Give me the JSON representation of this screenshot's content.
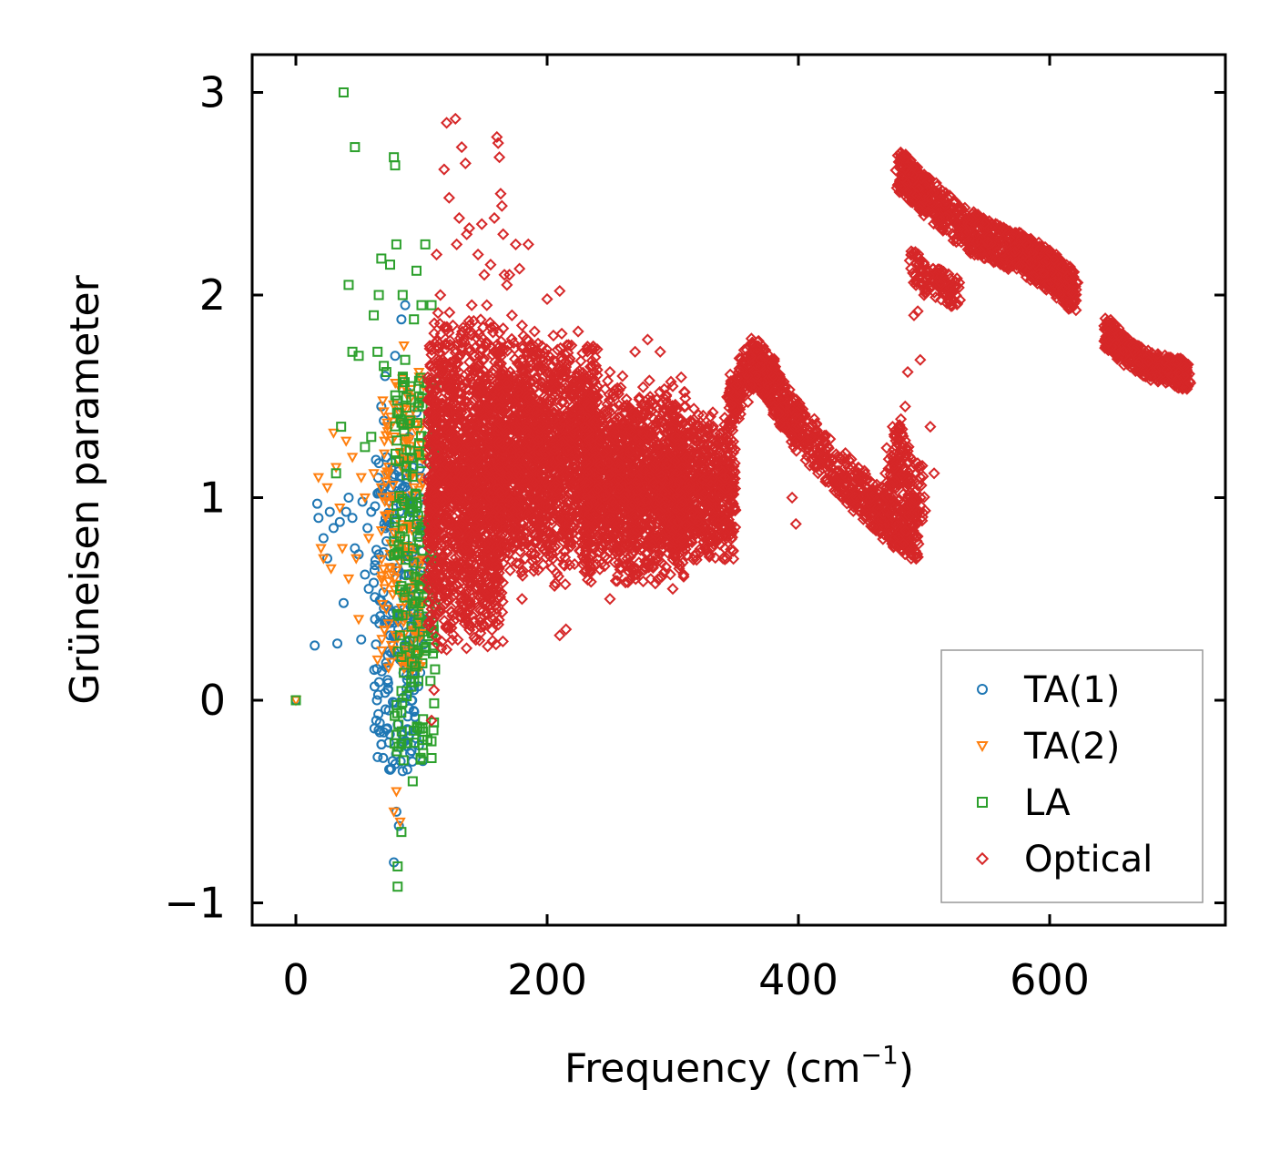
{
  "chart_data": {
    "type": "scatter",
    "title": "",
    "xlabel": "Frequency (cm",
    "xlabel_sup": "−1",
    "xlabel_suffix": ")",
    "ylabel": "Grüneisen parameter",
    "xlim": [
      -35,
      740
    ],
    "ylim": [
      -1.2,
      3.2
    ],
    "xticks": [
      0,
      200,
      400,
      600
    ],
    "xtick_labels": [
      "0",
      "200",
      "400",
      "600"
    ],
    "yticks": [
      -1,
      0,
      1,
      2,
      3
    ],
    "ytick_labels": [
      "−1",
      "0",
      "1",
      "2",
      "3"
    ],
    "grid": false,
    "legend_position": "lower-right",
    "series": [
      {
        "name": "TA(1)",
        "marker": "circle",
        "color": "#1f77b4",
        "points": [
          [
            0,
            0
          ],
          [
            15,
            0.27
          ],
          [
            17,
            0.97
          ],
          [
            18,
            0.9
          ],
          [
            22,
            0.8
          ],
          [
            25,
            0.7
          ],
          [
            27,
            0.93
          ],
          [
            30,
            0.85
          ],
          [
            33,
            0.28
          ],
          [
            35,
            0.88
          ],
          [
            38,
            0.48
          ],
          [
            40,
            0.93
          ],
          [
            42,
            1.0
          ],
          [
            45,
            0.9
          ],
          [
            47,
            0.75
          ],
          [
            50,
            0.72
          ],
          [
            52,
            0.3
          ],
          [
            53,
            0.98
          ],
          [
            55,
            0.62
          ],
          [
            57,
            0.85
          ],
          [
            58,
            0.55
          ],
          [
            60,
            0.93
          ],
          [
            62,
            0.58
          ],
          [
            63,
            0.4
          ],
          [
            65,
            1.02
          ],
          [
            66,
            0.72
          ],
          [
            68,
            1.45
          ],
          [
            70,
            1.38
          ],
          [
            71,
            1.6
          ],
          [
            72,
            1.2
          ],
          [
            73,
            0.1
          ],
          [
            74,
            -0.05
          ],
          [
            75,
            0.32
          ],
          [
            76,
            1.05
          ],
          [
            77,
            -0.3
          ],
          [
            78,
            0.82
          ],
          [
            78,
            -0.8
          ],
          [
            79,
            1.7
          ],
          [
            80,
            -0.55
          ],
          [
            80,
            0.6
          ],
          [
            81,
            -0.12
          ],
          [
            82,
            1.45
          ],
          [
            82,
            -0.62
          ],
          [
            83,
            0.2
          ],
          [
            84,
            1.88
          ],
          [
            85,
            -0.35
          ],
          [
            85,
            1.05
          ],
          [
            86,
            0.45
          ],
          [
            87,
            1.95
          ],
          [
            87,
            -0.2
          ],
          [
            88,
            0.72
          ],
          [
            89,
            1.52
          ],
          [
            89,
            -0.08
          ],
          [
            90,
            1.3
          ],
          [
            91,
            0.95
          ],
          [
            92,
            0.5
          ],
          [
            92,
            -0.25
          ],
          [
            93,
            1.15
          ],
          [
            94,
            0.05
          ],
          [
            95,
            0.65
          ],
          [
            96,
            1.42
          ],
          [
            97,
            -0.15
          ],
          [
            98,
            0.85
          ],
          [
            99,
            0.32
          ],
          [
            100,
            1.1
          ]
        ],
        "cloud": {
          "x": [
            62,
            102
          ],
          "y": [
            -0.35,
            1.2
          ],
          "n": 220
        }
      },
      {
        "name": "TA(2)",
        "marker": "triangle-down",
        "color": "#ff7f0e",
        "points": [
          [
            0,
            0
          ],
          [
            18,
            1.1
          ],
          [
            20,
            0.75
          ],
          [
            22,
            0.7
          ],
          [
            25,
            1.05
          ],
          [
            28,
            0.65
          ],
          [
            30,
            1.32
          ],
          [
            32,
            1.15
          ],
          [
            35,
            0.95
          ],
          [
            37,
            0.75
          ],
          [
            40,
            1.28
          ],
          [
            42,
            0.6
          ],
          [
            45,
            1.2
          ],
          [
            48,
            0.7
          ],
          [
            50,
            0.4
          ],
          [
            52,
            1.1
          ],
          [
            55,
            1.0
          ],
          [
            58,
            0.8
          ],
          [
            62,
            1.12
          ],
          [
            65,
            0.2
          ],
          [
            68,
            1.05
          ],
          [
            72,
            0.45
          ],
          [
            75,
            0.62
          ],
          [
            78,
            -0.55
          ],
          [
            80,
            -0.45
          ],
          [
            82,
            1.55
          ],
          [
            83,
            -0.6
          ],
          [
            85,
            0.5
          ],
          [
            86,
            1.75
          ],
          [
            88,
            0.25
          ],
          [
            90,
            1.35
          ],
          [
            92,
            0.75
          ],
          [
            94,
            1.05
          ],
          [
            96,
            0.35
          ],
          [
            98,
            1.62
          ],
          [
            100,
            0.55
          ]
        ],
        "cloud": {
          "x": [
            68,
            102
          ],
          "y": [
            0.15,
            1.6
          ],
          "n": 180
        }
      },
      {
        "name": "LA",
        "marker": "square",
        "color": "#2ca02c",
        "points": [
          [
            0,
            0
          ],
          [
            32,
            1.12
          ],
          [
            36,
            1.35
          ],
          [
            38,
            3.0
          ],
          [
            42,
            2.05
          ],
          [
            45,
            1.72
          ],
          [
            47,
            2.73
          ],
          [
            50,
            1.7
          ],
          [
            55,
            1.25
          ],
          [
            60,
            1.3
          ],
          [
            62,
            1.9
          ],
          [
            65,
            1.72
          ],
          [
            66,
            2.0
          ],
          [
            68,
            2.18
          ],
          [
            70,
            1.65
          ],
          [
            72,
            1.62
          ],
          [
            75,
            2.15
          ],
          [
            78,
            2.68
          ],
          [
            79,
            2.64
          ],
          [
            80,
            2.25
          ],
          [
            81,
            -0.82
          ],
          [
            82,
            1.42
          ],
          [
            84,
            -0.65
          ],
          [
            85,
            2.0
          ],
          [
            87,
            1.68
          ],
          [
            88,
            1.15
          ],
          [
            90,
            0.62
          ],
          [
            91,
            1.55
          ],
          [
            93,
            -0.4
          ],
          [
            94,
            1.88
          ],
          [
            95,
            1.02
          ],
          [
            96,
            2.12
          ],
          [
            97,
            0.38
          ],
          [
            98,
            1.5
          ],
          [
            100,
            1.95
          ],
          [
            101,
            -0.22
          ],
          [
            102,
            0.85
          ],
          [
            103,
            2.25
          ],
          [
            105,
            1.3
          ],
          [
            107,
            0.72
          ],
          [
            108,
            1.95
          ],
          [
            110,
            1.28
          ],
          [
            112,
            1.15
          ],
          [
            81,
            -0.92
          ]
        ],
        "cloud": {
          "x": [
            78,
            112
          ],
          "y": [
            -0.3,
            1.65
          ],
          "n": 200
        }
      },
      {
        "name": "Optical",
        "marker": "diamond",
        "color": "#d62728",
        "points": [
          [
            103,
            0.6
          ],
          [
            108,
            1.25
          ],
          [
            112,
            2.2
          ],
          [
            115,
            2.0
          ],
          [
            118,
            2.62
          ],
          [
            120,
            2.85
          ],
          [
            122,
            2.48
          ],
          [
            125,
            1.85
          ],
          [
            127,
            2.87
          ],
          [
            128,
            2.25
          ],
          [
            130,
            2.38
          ],
          [
            132,
            2.73
          ],
          [
            135,
            2.65
          ],
          [
            136,
            2.3
          ],
          [
            138,
            2.33
          ],
          [
            140,
            1.95
          ],
          [
            145,
            2.2
          ],
          [
            148,
            2.35
          ],
          [
            150,
            2.1
          ],
          [
            152,
            1.95
          ],
          [
            155,
            2.15
          ],
          [
            158,
            2.38
          ],
          [
            160,
            2.78
          ],
          [
            161,
            2.75
          ],
          [
            162,
            2.68
          ],
          [
            163,
            2.5
          ],
          [
            164,
            2.44
          ],
          [
            165,
            2.3
          ],
          [
            166,
            2.1
          ],
          [
            168,
            2.05
          ],
          [
            170,
            2.1
          ],
          [
            172,
            1.9
          ],
          [
            175,
            2.25
          ],
          [
            178,
            2.13
          ],
          [
            180,
            1.85
          ],
          [
            185,
            2.25
          ],
          [
            187,
            1.75
          ],
          [
            190,
            1.82
          ],
          [
            195,
            1.65
          ],
          [
            200,
            1.98
          ],
          [
            205,
            1.8
          ],
          [
            210,
            2.02
          ],
          [
            215,
            1.62
          ],
          [
            220,
            1.45
          ],
          [
            225,
            1.55
          ],
          [
            230,
            1.35
          ],
          [
            240,
            1.55
          ],
          [
            250,
            1.62
          ],
          [
            260,
            1.6
          ],
          [
            270,
            1.72
          ],
          [
            280,
            1.78
          ],
          [
            290,
            1.72
          ],
          [
            300,
            1.55
          ],
          [
            310,
            1.45
          ],
          [
            320,
            1.35
          ],
          [
            330,
            1.4
          ],
          [
            350,
            1.55
          ],
          [
            360,
            1.6
          ],
          [
            370,
            1.68
          ],
          [
            380,
            1.6
          ],
          [
            395,
            1.0
          ],
          [
            398,
            0.87
          ],
          [
            400,
            1.35
          ],
          [
            410,
            1.3
          ],
          [
            420,
            1.2
          ],
          [
            430,
            1.08
          ],
          [
            440,
            1.02
          ],
          [
            460,
            0.92
          ],
          [
            470,
            1.05
          ],
          [
            475,
            1.35
          ],
          [
            478,
            1.25
          ],
          [
            480,
            1.35
          ],
          [
            485,
            1.45
          ],
          [
            487,
            1.62
          ],
          [
            490,
            2.2
          ],
          [
            492,
            1.9
          ],
          [
            495,
            1.92
          ],
          [
            497,
            1.68
          ],
          [
            500,
            2.0
          ],
          [
            505,
            1.35
          ],
          [
            508,
            1.12
          ],
          [
            210,
            0.32
          ],
          [
            215,
            0.35
          ],
          [
            180,
            0.5
          ],
          [
            160,
            0.45
          ],
          [
            140,
            0.42
          ],
          [
            250,
            0.5
          ],
          [
            300,
            0.55
          ],
          [
            340,
            0.7
          ],
          [
            120,
            0.25
          ],
          [
            110,
            0.05
          ],
          [
            108,
            -0.1
          ],
          [
            112,
            0.28
          ]
        ],
        "regions": [
          {
            "x": [
              105,
              165
            ],
            "y": [
              0.2,
              1.95
            ],
            "n": 1600
          },
          {
            "x": [
              160,
              240
            ],
            "y": [
              0.55,
              1.85
            ],
            "n": 1600
          },
          {
            "x": [
              230,
              310
            ],
            "y": [
              0.55,
              1.6
            ],
            "n": 1500
          },
          {
            "x": [
              300,
              350
            ],
            "y": [
              0.65,
              1.45
            ],
            "n": 700
          }
        ],
        "paths": [
          {
            "x": [
              345,
              365,
              380,
              400,
              440,
              470,
              495
            ],
            "y": [
              1.45,
              1.67,
              1.55,
              1.35,
              1.08,
              0.9,
              0.8
            ],
            "spread": 0.12,
            "n": 900
          },
          {
            "x": [
              480,
              500,
              540,
              580,
              600,
              620
            ],
            "y": [
              2.62,
              2.5,
              2.3,
              2.2,
              2.12,
              2.02
            ],
            "spread": 0.1,
            "n": 1100
          },
          {
            "x": [
              645,
              660,
              680,
              700,
              710
            ],
            "y": [
              1.82,
              1.72,
              1.65,
              1.62,
              1.6
            ],
            "spread": 0.07,
            "n": 450
          },
          {
            "x": [
              470,
              480,
              490,
              500
            ],
            "y": [
              1.05,
              1.25,
              1.05,
              1.0
            ],
            "spread": 0.15,
            "n": 150
          },
          {
            "x": [
              490,
              500,
              515,
              530
            ],
            "y": [
              2.15,
              2.08,
              2.05,
              2.0
            ],
            "spread": 0.08,
            "n": 120
          }
        ]
      }
    ]
  }
}
